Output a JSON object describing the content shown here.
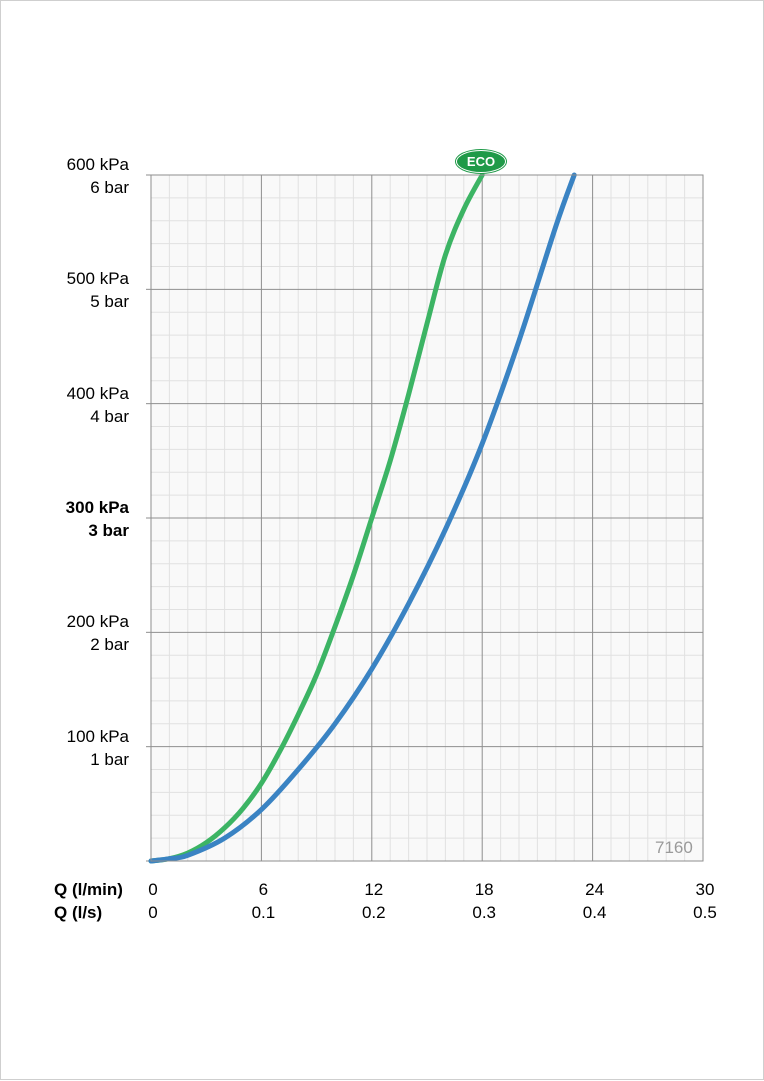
{
  "chart_data": {
    "type": "line",
    "xlabels": [
      "Q (l/min)",
      "Q (l/s)"
    ],
    "x_ticks_lmin": [
      "0",
      "6",
      "12",
      "18",
      "24",
      "30"
    ],
    "x_ticks_ls": [
      "0",
      "0.1",
      "0.2",
      "0.3",
      "0.4",
      "0.5"
    ],
    "y_ticks": [
      {
        "kpa": "600 kPa",
        "bar": "6 bar",
        "value": 600,
        "bold": false
      },
      {
        "kpa": "500 kPa",
        "bar": "5 bar",
        "value": 500,
        "bold": false
      },
      {
        "kpa": "400 kPa",
        "bar": "4 bar",
        "value": 400,
        "bold": false
      },
      {
        "kpa": "300 kPa",
        "bar": "3 bar",
        "value": 300,
        "bold": true
      },
      {
        "kpa": "200 kPa",
        "bar": "2 bar",
        "value": 200,
        "bold": false
      },
      {
        "kpa": "100 kPa",
        "bar": "1 bar",
        "value": 100,
        "bold": false
      }
    ],
    "xlim": [
      0,
      30
    ],
    "ylim": [
      0,
      600
    ],
    "grid": true,
    "series": [
      {
        "name": "ECO",
        "color": "#3cb464",
        "x": [
          0,
          1,
          2,
          3,
          4,
          5,
          6,
          7,
          8,
          9,
          10,
          11,
          12,
          13,
          14,
          15,
          16,
          17,
          18
        ],
        "y": [
          0,
          2,
          7,
          16,
          29,
          46,
          68,
          96,
          128,
          163,
          205,
          250,
          300,
          350,
          408,
          470,
          530,
          570,
          600
        ]
      },
      {
        "name": "",
        "color": "#3a83c3",
        "x": [
          0,
          1,
          2,
          4,
          6,
          8,
          10,
          12,
          14,
          16,
          18,
          20,
          22,
          23
        ],
        "y": [
          0,
          2,
          5,
          20,
          45,
          80,
          120,
          168,
          225,
          290,
          365,
          455,
          555,
          600
        ]
      }
    ]
  },
  "eco_badge": "ECO",
  "id_label": "7160"
}
